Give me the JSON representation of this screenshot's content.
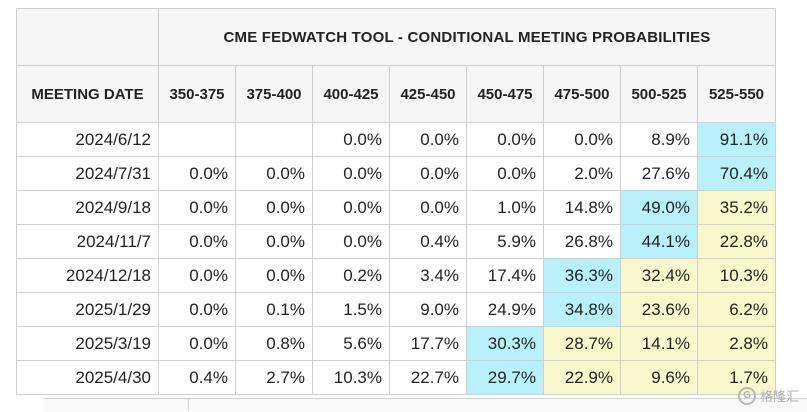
{
  "table": {
    "title": "CME FEDWATCH TOOL - CONDITIONAL MEETING PROBABILITIES",
    "date_header": "MEETING DATE",
    "columns": [
      "350-375",
      "375-400",
      "400-425",
      "425-450",
      "450-475",
      "475-500",
      "500-525",
      "525-550"
    ],
    "rows": [
      {
        "date": "2024/6/12",
        "values": [
          "",
          "",
          "0.0%",
          "0.0%",
          "0.0%",
          "0.0%",
          "8.9%",
          "91.1%"
        ],
        "highlight": [
          "",
          "",
          "",
          "",
          "",
          "",
          "",
          "cyan"
        ]
      },
      {
        "date": "2024/7/31",
        "values": [
          "0.0%",
          "0.0%",
          "0.0%",
          "0.0%",
          "0.0%",
          "2.0%",
          "27.6%",
          "70.4%"
        ],
        "highlight": [
          "",
          "",
          "",
          "",
          "",
          "",
          "",
          "cyan"
        ]
      },
      {
        "date": "2024/9/18",
        "values": [
          "0.0%",
          "0.0%",
          "0.0%",
          "0.0%",
          "1.0%",
          "14.8%",
          "49.0%",
          "35.2%"
        ],
        "highlight": [
          "",
          "",
          "",
          "",
          "",
          "",
          "cyan",
          "yellow"
        ]
      },
      {
        "date": "2024/11/7",
        "values": [
          "0.0%",
          "0.0%",
          "0.0%",
          "0.4%",
          "5.9%",
          "26.8%",
          "44.1%",
          "22.8%"
        ],
        "highlight": [
          "",
          "",
          "",
          "",
          "",
          "",
          "cyan",
          "yellow"
        ]
      },
      {
        "date": "2024/12/18",
        "values": [
          "0.0%",
          "0.0%",
          "0.2%",
          "3.4%",
          "17.4%",
          "36.3%",
          "32.4%",
          "10.3%"
        ],
        "highlight": [
          "",
          "",
          "",
          "",
          "",
          "cyan",
          "yellow",
          "yellow"
        ]
      },
      {
        "date": "2025/1/29",
        "values": [
          "0.0%",
          "0.1%",
          "1.5%",
          "9.0%",
          "24.9%",
          "34.8%",
          "23.6%",
          "6.2%"
        ],
        "highlight": [
          "",
          "",
          "",
          "",
          "",
          "cyan",
          "yellow",
          "yellow"
        ]
      },
      {
        "date": "2025/3/19",
        "values": [
          "0.0%",
          "0.8%",
          "5.6%",
          "17.7%",
          "30.3%",
          "28.7%",
          "14.1%",
          "2.8%"
        ],
        "highlight": [
          "",
          "",
          "",
          "",
          "cyan",
          "yellow",
          "yellow",
          "yellow"
        ]
      },
      {
        "date": "2025/4/30",
        "values": [
          "0.4%",
          "2.7%",
          "10.3%",
          "22.7%",
          "29.7%",
          "22.9%",
          "9.6%",
          "1.7%"
        ],
        "highlight": [
          "",
          "",
          "",
          "",
          "cyan",
          "yellow",
          "yellow",
          "yellow"
        ]
      }
    ]
  },
  "colors": {
    "highlight_max": "#b8f0fb",
    "highlight_secondary": "#f8f8cc",
    "header_bg": "#f6f6f6"
  },
  "watermark": {
    "text": "格隆汇",
    "logo_letter": "G"
  }
}
